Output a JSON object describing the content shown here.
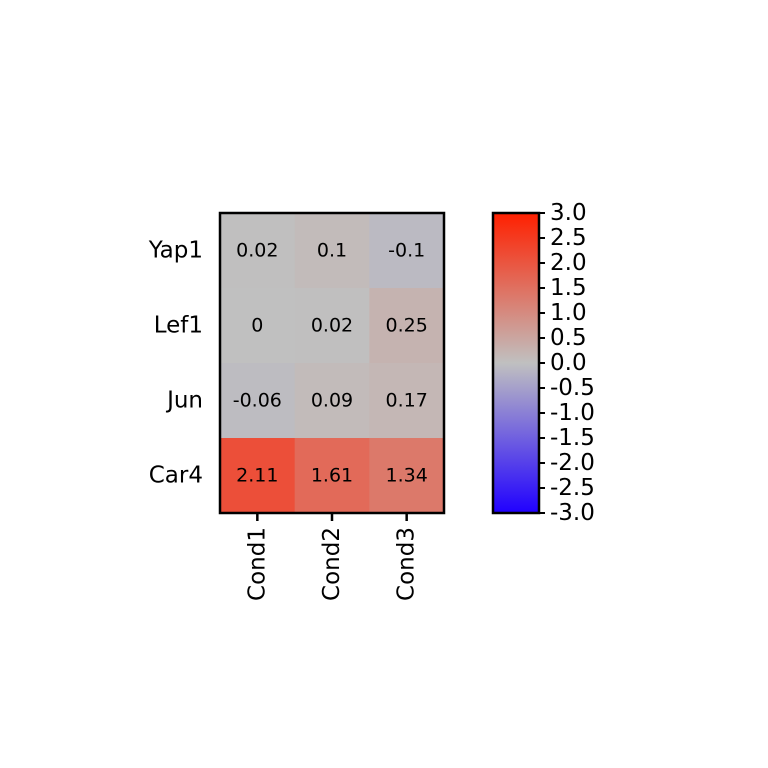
{
  "chart_data": {
    "type": "heatmap",
    "rows": [
      "Yap1",
      "Lef1",
      "Jun",
      "Car4"
    ],
    "columns": [
      "Cond1",
      "Cond2",
      "Cond3"
    ],
    "values": [
      [
        0.02,
        0.1,
        -0.1
      ],
      [
        0,
        0.02,
        0.25
      ],
      [
        -0.06,
        0.09,
        0.17
      ],
      [
        2.11,
        1.61,
        1.34
      ]
    ],
    "cell_labels": [
      [
        "0.02",
        "0.1",
        "-0.1"
      ],
      [
        "0",
        "0.02",
        "0.25"
      ],
      [
        "-0.06",
        "0.09",
        "0.17"
      ],
      [
        "2.11",
        "1.61",
        "1.34"
      ]
    ],
    "colorbar": {
      "range": [
        -3.0,
        3.0
      ],
      "ticks": [
        "3.0",
        "2.5",
        "2.0",
        "1.5",
        "1.0",
        "0.5",
        "0.0",
        "-0.5",
        "-1.0",
        "-1.5",
        "-2.0",
        "-2.5",
        "-3.0"
      ],
      "colors": {
        "low": "#2000ff",
        "mid": "#c0c0c0",
        "high": "#ff2000"
      }
    },
    "title": "",
    "xlabel": "",
    "ylabel": ""
  }
}
